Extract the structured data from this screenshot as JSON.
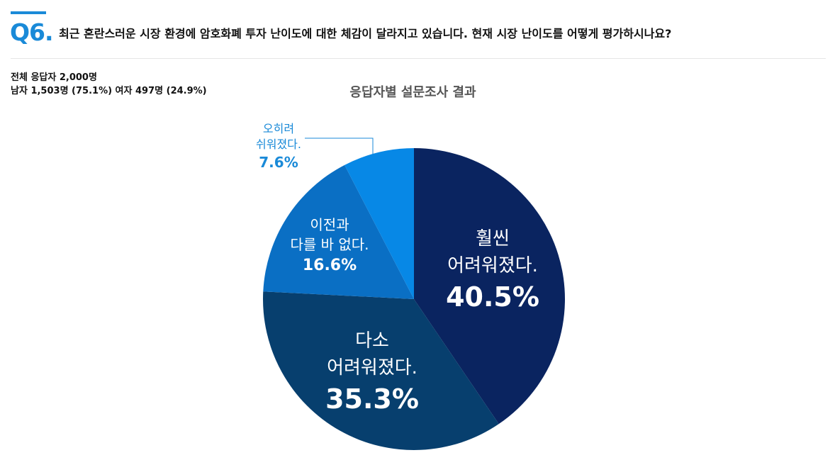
{
  "question": {
    "number": "Q6.",
    "text": "최근 혼란스러운 시장 환경에 암호화폐 투자 난이도에 대한 체감이 달라지고 있습니다. 현재 시장 난이도를 어떻게 평가하시나요?"
  },
  "respondents": {
    "total": "전체 응답자 2,000명",
    "gender": "남자 1,503명 (75.1%) 여자 497명 (24.9%)"
  },
  "colors": {
    "accent": "#1a8ad8",
    "slices": [
      "#0a2460",
      "#073f6e",
      "#0a6fc4",
      "#0788e6"
    ]
  },
  "chart_data": {
    "type": "pie",
    "title": "응답자별 설문조사 결과",
    "slices": [
      {
        "label_lines": [
          "훨씬",
          "어려워졌다."
        ],
        "value": 40.5,
        "percent_text": "40.5%"
      },
      {
        "label_lines": [
          "다소",
          "어려워졌다."
        ],
        "value": 35.3,
        "percent_text": "35.3%"
      },
      {
        "label_lines": [
          "이전과",
          "다를 바 없다."
        ],
        "value": 16.6,
        "percent_text": "16.6%"
      },
      {
        "label_lines": [
          "오히려",
          "쉬워졌다."
        ],
        "value": 7.6,
        "percent_text": "7.6%"
      }
    ],
    "start_angle": "12 o'clock",
    "direction": "clockwise"
  }
}
